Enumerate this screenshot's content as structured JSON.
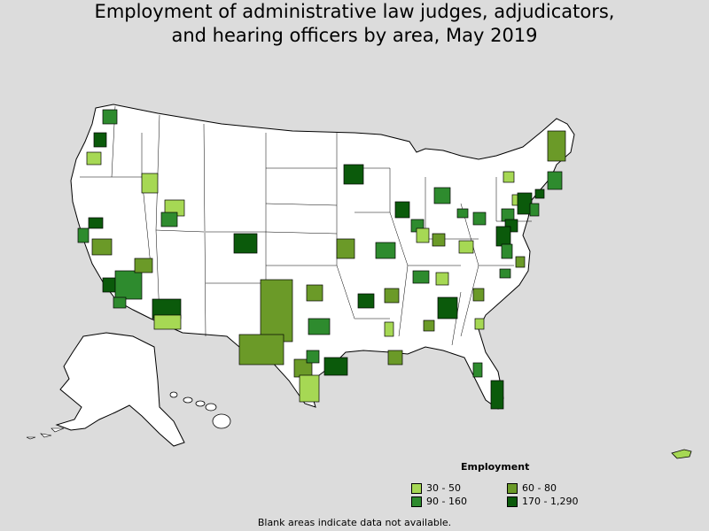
{
  "title": {
    "line1": "Employment of administrative law judges, adjudicators,",
    "line2": "and hearing officers by area, May 2019"
  },
  "legend": {
    "title": "Employment",
    "items": [
      {
        "label": "30 - 50",
        "color": "#a6d854"
      },
      {
        "label": "60 - 80",
        "color": "#6b9a28"
      },
      {
        "label": "90 - 160",
        "color": "#2e8b2e"
      },
      {
        "label": "170 - 1,290",
        "color": "#0b5a0b"
      }
    ]
  },
  "footnote": "Blank areas indicate data not available.",
  "colors": {
    "background": "#dcdcdc",
    "land": "#ffffff",
    "border": "#000000"
  }
}
